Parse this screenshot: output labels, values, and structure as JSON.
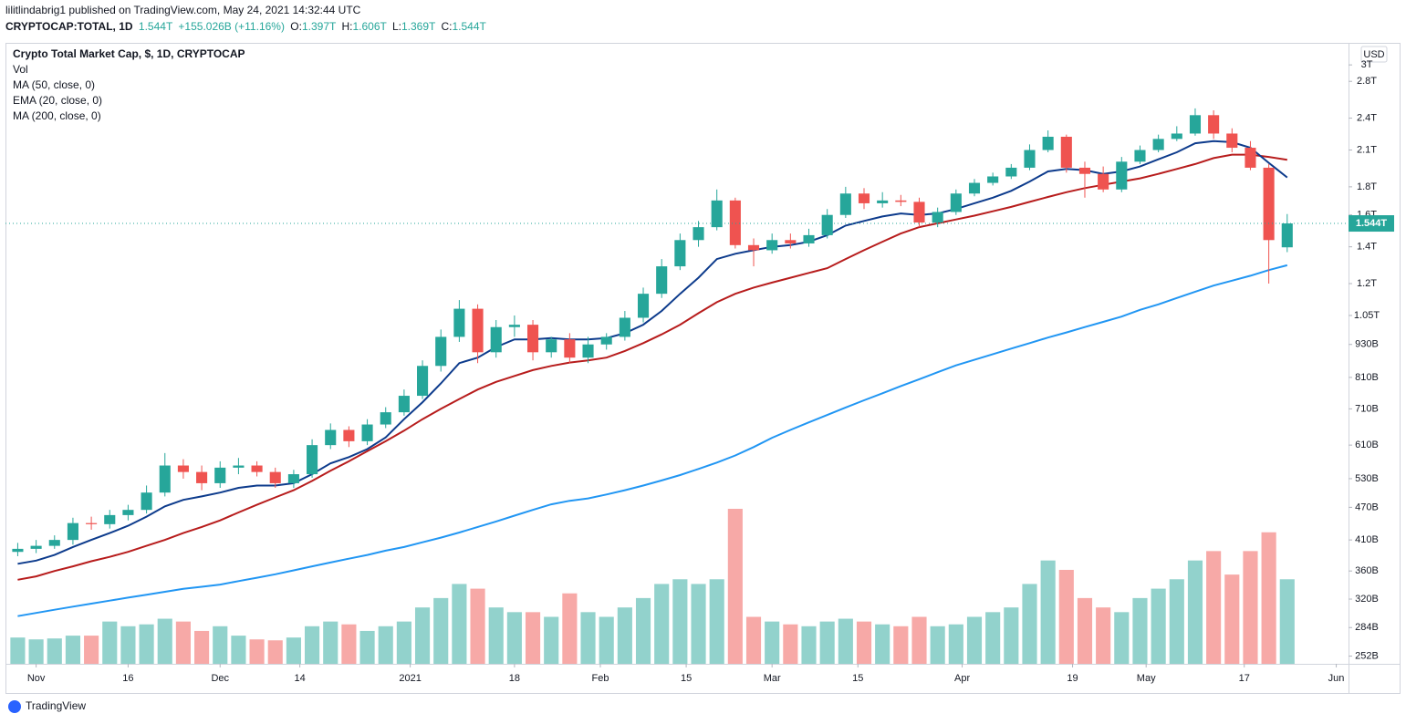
{
  "header": {
    "published": "lilitlindabrig1 published on TradingView.com, May 24, 2021 14:32:44 UTC",
    "symbol": "CRYPTOCAP:TOTAL, 1D",
    "last": "1.544T",
    "change": "+155.026B (+11.16%)",
    "ohlc": [
      {
        "label": "O:",
        "value": "1.397T"
      },
      {
        "label": "H:",
        "value": "1.606T"
      },
      {
        "label": "L:",
        "value": "1.369T"
      },
      {
        "label": "C:",
        "value": "1.544T"
      }
    ]
  },
  "chart_data": {
    "type": "candlestick",
    "title": "Crypto Total Market Cap, $, 1D, CRYPTOCAP",
    "volume_name": "Vol",
    "currency": "USD",
    "log_scale": true,
    "grid": false,
    "up_color": "#26a69a",
    "down_color": "#ef5350",
    "x": [
      "2020-10-29",
      "2020-11-01",
      "2020-11-04",
      "2020-11-07",
      "2020-11-10",
      "2020-11-13",
      "2020-11-16",
      "2020-11-19",
      "2020-11-22",
      "2020-11-25",
      "2020-11-28",
      "2020-12-01",
      "2020-12-04",
      "2020-12-07",
      "2020-12-10",
      "2020-12-13",
      "2020-12-16",
      "2020-12-19",
      "2020-12-22",
      "2020-12-25",
      "2020-12-28",
      "2020-12-31",
      "2021-01-03",
      "2021-01-06",
      "2021-01-09",
      "2021-01-12",
      "2021-01-15",
      "2021-01-18",
      "2021-01-21",
      "2021-01-24",
      "2021-01-27",
      "2021-01-30",
      "2021-02-02",
      "2021-02-05",
      "2021-02-08",
      "2021-02-11",
      "2021-02-14",
      "2021-02-17",
      "2021-02-20",
      "2021-02-23",
      "2021-02-26",
      "2021-03-01",
      "2021-03-04",
      "2021-03-07",
      "2021-03-10",
      "2021-03-13",
      "2021-03-16",
      "2021-03-19",
      "2021-03-22",
      "2021-03-25",
      "2021-03-28",
      "2021-03-31",
      "2021-04-03",
      "2021-04-06",
      "2021-04-09",
      "2021-04-12",
      "2021-04-15",
      "2021-04-18",
      "2021-04-21",
      "2021-04-24",
      "2021-04-27",
      "2021-04-30",
      "2021-05-03",
      "2021-05-06",
      "2021-05-09",
      "2021-05-12",
      "2021-05-15",
      "2021-05-18",
      "2021-05-21",
      "2021-05-24"
    ],
    "open": [
      390,
      395,
      400,
      410,
      440,
      438,
      455,
      465,
      500,
      560,
      545,
      520,
      555,
      560,
      545,
      520,
      540,
      610,
      650,
      620,
      665,
      700,
      750,
      850,
      960,
      1080,
      900,
      1000,
      1010,
      900,
      950,
      880,
      930,
      960,
      1040,
      1150,
      1290,
      1440,
      1520,
      1700,
      1410,
      1380,
      1440,
      1420,
      1470,
      1600,
      1750,
      1680,
      1700,
      1690,
      1550,
      1620,
      1750,
      1830,
      1880,
      1950,
      2100,
      2220,
      1950,
      1900,
      1780,
      2000,
      2100,
      2200,
      2250,
      2430,
      2250,
      2120,
      1950,
      1397
    ],
    "high": [
      405,
      410,
      418,
      450,
      452,
      465,
      475,
      515,
      590,
      575,
      560,
      570,
      578,
      570,
      555,
      550,
      625,
      668,
      660,
      680,
      715,
      770,
      870,
      990,
      1120,
      1100,
      1030,
      1050,
      1030,
      960,
      975,
      960,
      975,
      1070,
      1180,
      1330,
      1480,
      1560,
      1780,
      1720,
      1450,
      1480,
      1480,
      1510,
      1640,
      1800,
      1790,
      1760,
      1740,
      1720,
      1650,
      1780,
      1860,
      1910,
      1980,
      2150,
      2280,
      2240,
      2000,
      1960,
      2040,
      2140,
      2240,
      2320,
      2500,
      2480,
      2300,
      2180,
      1980,
      1606
    ],
    "low": [
      383,
      388,
      395,
      402,
      428,
      430,
      445,
      458,
      492,
      530,
      505,
      510,
      540,
      535,
      510,
      510,
      532,
      600,
      605,
      610,
      655,
      690,
      740,
      830,
      940,
      860,
      880,
      960,
      870,
      880,
      860,
      860,
      910,
      945,
      1020,
      1130,
      1270,
      1400,
      1500,
      1390,
      1290,
      1360,
      1390,
      1400,
      1450,
      1580,
      1640,
      1650,
      1660,
      1520,
      1520,
      1600,
      1730,
      1810,
      1860,
      1930,
      2080,
      1910,
      1720,
      1760,
      1760,
      1980,
      2080,
      2180,
      2230,
      2200,
      2080,
      1930,
      1200,
      1369
    ],
    "close": [
      395,
      400,
      410,
      440,
      438,
      455,
      465,
      500,
      560,
      545,
      520,
      555,
      560,
      545,
      520,
      540,
      610,
      650,
      620,
      665,
      700,
      750,
      850,
      960,
      1080,
      900,
      1000,
      1010,
      900,
      950,
      880,
      930,
      960,
      1040,
      1150,
      1290,
      1440,
      1520,
      1700,
      1410,
      1380,
      1440,
      1420,
      1470,
      1600,
      1750,
      1680,
      1700,
      1690,
      1550,
      1620,
      1750,
      1830,
      1880,
      1950,
      2100,
      2220,
      1950,
      1900,
      1780,
      2000,
      2100,
      2200,
      2250,
      2430,
      2250,
      2120,
      1950,
      1440,
      1544
    ],
    "volume": [
      28,
      26,
      27,
      30,
      30,
      45,
      40,
      42,
      48,
      45,
      35,
      40,
      30,
      26,
      25,
      28,
      40,
      45,
      42,
      35,
      40,
      45,
      60,
      70,
      85,
      80,
      60,
      55,
      55,
      50,
      75,
      55,
      50,
      60,
      70,
      85,
      90,
      85,
      90,
      165,
      50,
      45,
      42,
      40,
      45,
      48,
      45,
      42,
      40,
      50,
      40,
      42,
      50,
      55,
      60,
      85,
      110,
      100,
      70,
      60,
      55,
      70,
      80,
      90,
      110,
      120,
      95,
      120,
      140,
      90
    ],
    "series": [
      {
        "name": "MA (50, close, 0)",
        "color": "#b71c1c",
        "values": [
          347,
          352,
          360,
          367,
          375,
          382,
          390,
          400,
          410,
          422,
          433,
          445,
          460,
          475,
          490,
          505,
          525,
          548,
          570,
          595,
          620,
          648,
          680,
          710,
          740,
          770,
          795,
          815,
          835,
          850,
          862,
          870,
          880,
          905,
          935,
          970,
          1010,
          1060,
          1110,
          1150,
          1180,
          1205,
          1230,
          1255,
          1280,
          1330,
          1380,
          1430,
          1480,
          1520,
          1545,
          1570,
          1595,
          1625,
          1655,
          1690,
          1725,
          1760,
          1790,
          1815,
          1840,
          1865,
          1900,
          1940,
          1980,
          2030,
          2060,
          2060,
          2040,
          2015
        ]
      },
      {
        "name": "EMA (20, close, 0)",
        "color": "#0d3b8c",
        "values": [
          371,
          376,
          385,
          398,
          410,
          422,
          435,
          452,
          472,
          485,
          492,
          500,
          510,
          515,
          515,
          520,
          540,
          565,
          580,
          600,
          630,
          680,
          730,
          790,
          860,
          880,
          920,
          950,
          950,
          955,
          950,
          950,
          955,
          975,
          1010,
          1070,
          1150,
          1230,
          1330,
          1360,
          1380,
          1400,
          1410,
          1430,
          1470,
          1530,
          1560,
          1590,
          1610,
          1600,
          1610,
          1640,
          1680,
          1720,
          1770,
          1840,
          1920,
          1940,
          1930,
          1900,
          1920,
          1960,
          2020,
          2080,
          2160,
          2180,
          2170,
          2120,
          1990,
          1872
        ]
      },
      {
        "name": "MA (200, close, 0)",
        "color": "#2196f3",
        "values": [
          298,
          302,
          306,
          310,
          314,
          318,
          322,
          326,
          330,
          334,
          337,
          340,
          345,
          350,
          355,
          361,
          367,
          373,
          379,
          385,
          392,
          398,
          406,
          414,
          423,
          433,
          443,
          454,
          465,
          476,
          483,
          488,
          496,
          505,
          515,
          526,
          538,
          552,
          567,
          584,
          605,
          629,
          650,
          671,
          692,
          714,
          736,
          758,
          781,
          804,
          828,
          852,
          872,
          893,
          914,
          935,
          957,
          978,
          1000,
          1022,
          1045,
          1075,
          1100,
          1130,
          1160,
          1190,
          1215,
          1240,
          1270,
          1296
        ]
      }
    ],
    "last_value": 1544,
    "last_label": "1.544T",
    "ylim": [
      244,
      3290
    ],
    "yticks": [
      {
        "value": 3000,
        "label": "3T"
      },
      {
        "value": 2800,
        "label": "2.8T"
      },
      {
        "value": 2400,
        "label": "2.4T"
      },
      {
        "value": 2100,
        "label": "2.1T"
      },
      {
        "value": 1800,
        "label": "1.8T"
      },
      {
        "value": 1600,
        "label": "1.6T"
      },
      {
        "value": 1400,
        "label": "1.4T"
      },
      {
        "value": 1200,
        "label": "1.2T"
      },
      {
        "value": 1050,
        "label": "1.05T"
      },
      {
        "value": 930,
        "label": "930B"
      },
      {
        "value": 810,
        "label": "810B"
      },
      {
        "value": 710,
        "label": "710B"
      },
      {
        "value": 610,
        "label": "610B"
      },
      {
        "value": 530,
        "label": "530B"
      },
      {
        "value": 470,
        "label": "470B"
      },
      {
        "value": 410,
        "label": "410B"
      },
      {
        "value": 360,
        "label": "360B"
      },
      {
        "value": 320,
        "label": "320B"
      },
      {
        "value": 284,
        "label": "284B"
      },
      {
        "value": 252,
        "label": "252B"
      }
    ],
    "xlim": [
      "2020-10-27",
      "2021-06-03"
    ],
    "xticks": [
      {
        "value": "2020-11-01",
        "label": "Nov"
      },
      {
        "value": "2020-11-16",
        "label": "16"
      },
      {
        "value": "2020-12-01",
        "label": "Dec"
      },
      {
        "value": "2020-12-14",
        "label": "14"
      },
      {
        "value": "2021-01-01",
        "label": "2021"
      },
      {
        "value": "2021-01-18",
        "label": "18"
      },
      {
        "value": "2021-02-01",
        "label": "Feb"
      },
      {
        "value": "2021-02-15",
        "label": "15"
      },
      {
        "value": "2021-03-01",
        "label": "Mar"
      },
      {
        "value": "2021-03-15",
        "label": "15"
      },
      {
        "value": "2021-04-01",
        "label": "Apr"
      },
      {
        "value": "2021-04-19",
        "label": "19"
      },
      {
        "value": "2021-05-01",
        "label": "May"
      },
      {
        "value": "2021-05-17",
        "label": "17"
      },
      {
        "value": "2021-06-01",
        "label": "Jun"
      }
    ]
  },
  "footer": {
    "brand": "TradingView"
  }
}
